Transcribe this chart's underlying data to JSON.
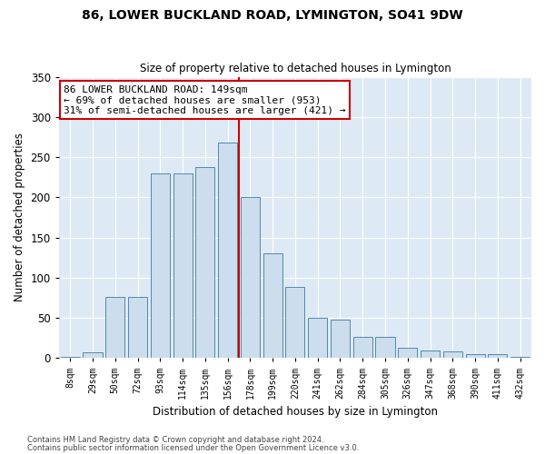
{
  "title": "86, LOWER BUCKLAND ROAD, LYMINGTON, SO41 9DW",
  "subtitle": "Size of property relative to detached houses in Lymington",
  "xlabel": "Distribution of detached houses by size in Lymington",
  "ylabel": "Number of detached properties",
  "bar_labels": [
    "8sqm",
    "29sqm",
    "50sqm",
    "72sqm",
    "93sqm",
    "114sqm",
    "135sqm",
    "156sqm",
    "178sqm",
    "199sqm",
    "220sqm",
    "241sqm",
    "262sqm",
    "284sqm",
    "305sqm",
    "326sqm",
    "347sqm",
    "368sqm",
    "390sqm",
    "411sqm",
    "432sqm"
  ],
  "bar_values": [
    2,
    7,
    76,
    76,
    230,
    230,
    238,
    268,
    200,
    130,
    88,
    50,
    48,
    26,
    26,
    13,
    9,
    8,
    5,
    5,
    2
  ],
  "bar_color": "#ccdded",
  "bar_edge_color": "#5588aa",
  "vline_x": 7.5,
  "vline_color": "#cc0000",
  "annotation_text": "86 LOWER BUCKLAND ROAD: 149sqm\n← 69% of detached houses are smaller (953)\n31% of semi-detached houses are larger (421) →",
  "annotation_box_color": "#ffffff",
  "annotation_box_edge": "#cc0000",
  "ylim": [
    0,
    350
  ],
  "yticks": [
    0,
    50,
    100,
    150,
    200,
    250,
    300,
    350
  ],
  "bg_color": "#ddeaf5",
  "footer1": "Contains HM Land Registry data © Crown copyright and database right 2024.",
  "footer2": "Contains public sector information licensed under the Open Government Licence v3.0."
}
